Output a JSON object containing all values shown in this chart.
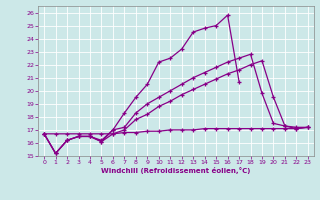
{
  "xlabel": "Windchill (Refroidissement éolien,°C)",
  "background_color": "#cce8e8",
  "grid_color": "#ffffff",
  "line_color": "#880088",
  "xlim": [
    -0.5,
    23.5
  ],
  "ylim": [
    15,
    26.5
  ],
  "x": [
    0,
    1,
    2,
    3,
    4,
    5,
    6,
    7,
    8,
    9,
    10,
    11,
    12,
    13,
    14,
    15,
    16,
    17,
    18,
    19,
    20,
    21,
    22,
    23
  ],
  "line1": [
    16.7,
    15.2,
    16.2,
    16.5,
    16.5,
    16.2,
    17.0,
    18.3,
    19.5,
    20.5,
    22.2,
    22.5,
    23.2,
    24.5,
    24.8,
    25.0,
    25.8,
    20.7,
    null,
    null,
    null,
    null,
    null,
    null
  ],
  "line2": [
    16.7,
    15.2,
    16.2,
    16.5,
    16.5,
    16.1,
    17.0,
    17.2,
    18.3,
    19.0,
    19.5,
    20.0,
    20.5,
    21.0,
    21.4,
    21.8,
    22.2,
    22.5,
    22.8,
    19.8,
    17.5,
    17.3,
    17.2,
    17.2
  ],
  "line3": [
    16.7,
    15.2,
    16.2,
    16.5,
    16.5,
    16.1,
    16.7,
    17.0,
    17.8,
    18.2,
    18.8,
    19.2,
    19.7,
    20.1,
    20.5,
    20.9,
    21.3,
    21.6,
    22.0,
    22.3,
    19.5,
    17.3,
    17.1,
    17.2
  ],
  "line4": [
    16.7,
    16.7,
    16.7,
    16.7,
    16.7,
    16.7,
    16.7,
    16.8,
    16.8,
    16.9,
    16.9,
    17.0,
    17.0,
    17.0,
    17.1,
    17.1,
    17.1,
    17.1,
    17.1,
    17.1,
    17.1,
    17.1,
    17.1,
    17.2
  ],
  "yticks": [
    15,
    16,
    17,
    18,
    19,
    20,
    21,
    22,
    23,
    24,
    25,
    26
  ],
  "xticks": [
    0,
    1,
    2,
    3,
    4,
    5,
    6,
    7,
    8,
    9,
    10,
    11,
    12,
    13,
    14,
    15,
    16,
    17,
    18,
    19,
    20,
    21,
    22,
    23
  ]
}
